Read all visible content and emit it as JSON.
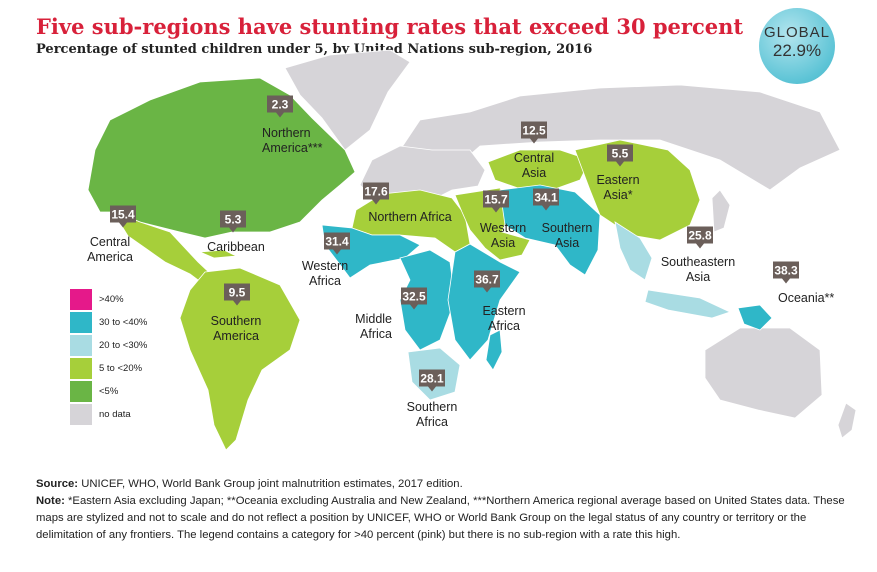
{
  "title": "Five sub-regions have stunting rates that exceed 30 percent",
  "subtitle": "Percentage of stunted children under 5, by United Nations sub-region, 2016",
  "global": {
    "label": "GLOBAL",
    "value": "22.9%"
  },
  "colors": {
    "gt40": "#e5198a",
    "c30to40": "#2fb7c8",
    "c20to30": "#a9dce3",
    "c5to20": "#a6cf3a",
    "lt5": "#6ab545",
    "nodata": "#d6d4d8"
  },
  "legend": [
    {
      "label": ">40%",
      "color": "#e5198a"
    },
    {
      "label": "30 to <40%",
      "color": "#2fb7c8"
    },
    {
      "label": "20 to <30%",
      "color": "#a9dce3"
    },
    {
      "label": "5 to <20%",
      "color": "#a6cf3a"
    },
    {
      "label": "<5%",
      "color": "#6ab545"
    },
    {
      "label": "no data",
      "color": "#d6d4d8"
    }
  ],
  "regions": [
    {
      "id": "northern-america",
      "value": "2.3",
      "name": [
        "Northern",
        "America***"
      ]
    },
    {
      "id": "central-america",
      "value": "15.4",
      "name": [
        "Central",
        "America"
      ]
    },
    {
      "id": "caribbean",
      "value": "5.3",
      "name": [
        "Caribbean"
      ]
    },
    {
      "id": "southern-america",
      "value": "9.5",
      "name": [
        "Southern",
        "America"
      ]
    },
    {
      "id": "northern-africa",
      "value": "17.6",
      "name": [
        "Northern Africa"
      ]
    },
    {
      "id": "western-africa",
      "value": "31.4",
      "name": [
        "Western",
        "Africa"
      ]
    },
    {
      "id": "middle-africa",
      "value": "32.5",
      "name": [
        "Middle",
        "Africa"
      ]
    },
    {
      "id": "eastern-africa",
      "value": "36.7",
      "name": [
        "Eastern",
        "Africa"
      ]
    },
    {
      "id": "southern-africa",
      "value": "28.1",
      "name": [
        "Southern",
        "Africa"
      ]
    },
    {
      "id": "central-asia",
      "value": "12.5",
      "name": [
        "Central",
        "Asia"
      ]
    },
    {
      "id": "eastern-asia",
      "value": "5.5",
      "name": [
        "Eastern",
        "Asia*"
      ]
    },
    {
      "id": "western-asia",
      "value": "15.7",
      "name": [
        "Western",
        "Asia"
      ]
    },
    {
      "id": "southern-asia",
      "value": "34.1",
      "name": [
        "Southern",
        "Asia"
      ]
    },
    {
      "id": "southeastern-asia",
      "value": "25.8",
      "name": [
        "Southeastern",
        "Asia"
      ]
    },
    {
      "id": "oceania",
      "value": "38.3",
      "name": [
        "Oceania**"
      ]
    }
  ],
  "footer": {
    "source_label": "Source:",
    "source_text": " UNICEF, WHO, World Bank Group joint malnutrition estimates, 2017 edition.",
    "note_label": "Note:",
    "note_text": " *Eastern Asia excluding Japan; **Oceania excluding Australia and New Zealand, ***Northern America regional average based on United States data. These maps are stylized and not to scale and do not reflect a position by UNICEF, WHO or World Bank Group on the legal status of any country or territory or the delimitation of any frontiers. The legend contains a category for >40 percent (pink) but there is no sub-region with a rate this high."
  }
}
